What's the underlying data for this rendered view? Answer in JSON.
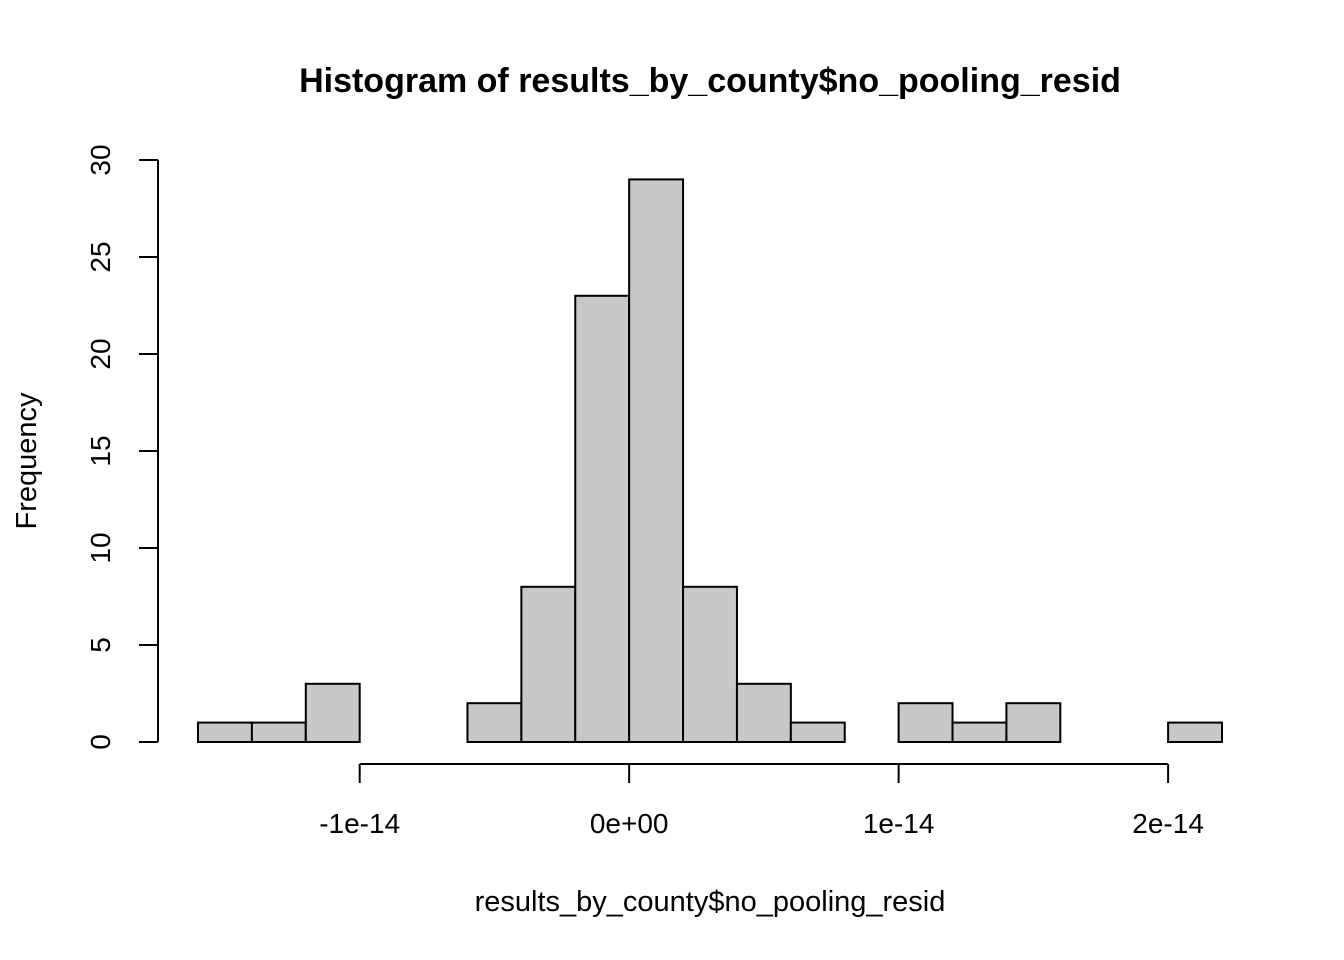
{
  "chart_data": {
    "type": "bar",
    "title": "Histogram of results_by_county$no_pooling_resid",
    "xlabel": "results_by_county$no_pooling_resid",
    "ylabel": "Frequency",
    "bin_width": 2e-15,
    "bin_edges": [
      -1.6e-14,
      -1.4e-14,
      -1.2e-14,
      -1e-14,
      -8e-15,
      -6e-15,
      -4e-15,
      -2e-15,
      0,
      2e-15,
      4e-15,
      6e-15,
      8e-15,
      1e-14,
      1.2e-14,
      1.4e-14,
      1.6e-14,
      1.8e-14,
      2e-14,
      2.2e-14
    ],
    "values": [
      1,
      1,
      3,
      0,
      0,
      2,
      8,
      23,
      29,
      8,
      3,
      1,
      0,
      2,
      1,
      2,
      0,
      0,
      1
    ],
    "xlim": [
      -1.6e-14,
      2.2e-14
    ],
    "ylim": [
      0,
      30
    ],
    "x_ticks": [
      -1e-14,
      0,
      1e-14,
      2e-14
    ],
    "x_tick_labels": [
      "-1e-14",
      "0e+00",
      "1e-14",
      "2e-14"
    ],
    "y_ticks": [
      0,
      5,
      10,
      15,
      20,
      25,
      30
    ],
    "y_tick_labels": [
      "0",
      "5",
      "10",
      "15",
      "20",
      "25",
      "30"
    ],
    "grid": false,
    "colors": {
      "bar_fill": "#c8c8c8",
      "bar_stroke": "#000000"
    }
  }
}
